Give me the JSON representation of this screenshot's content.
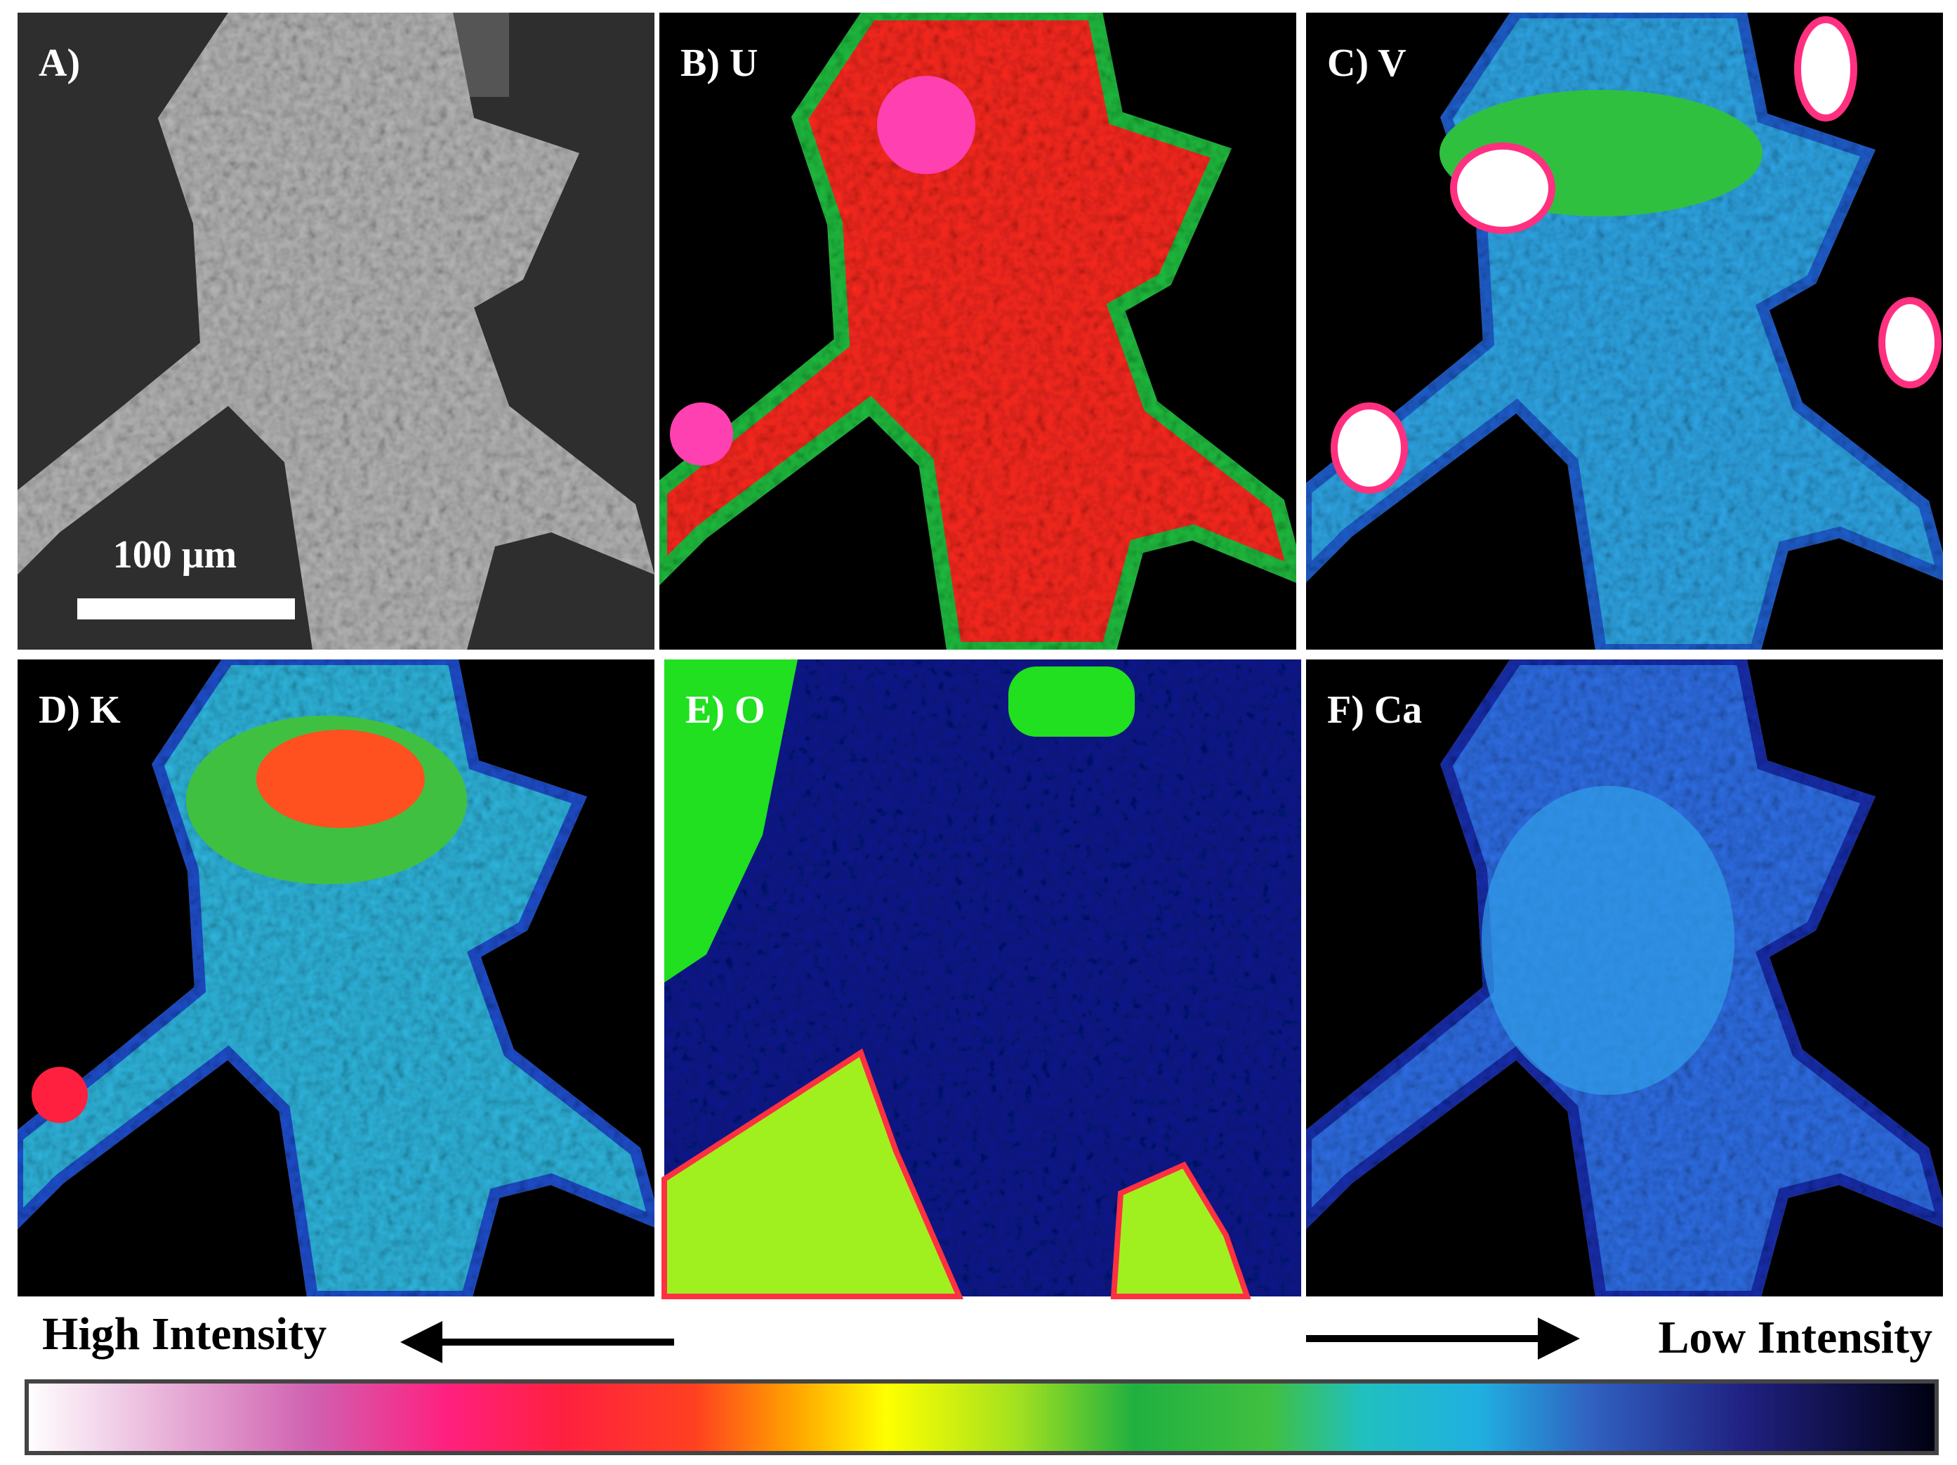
{
  "panels": [
    {
      "label": "A)"
    },
    {
      "label": "B) U"
    },
    {
      "label": "C) V"
    },
    {
      "label": "D) K"
    },
    {
      "label": "E) O"
    },
    {
      "label": "F) Ca"
    }
  ],
  "scale_bar": "100 μm",
  "intensity": {
    "high": "High Intensity",
    "low": "Low Intensity"
  }
}
